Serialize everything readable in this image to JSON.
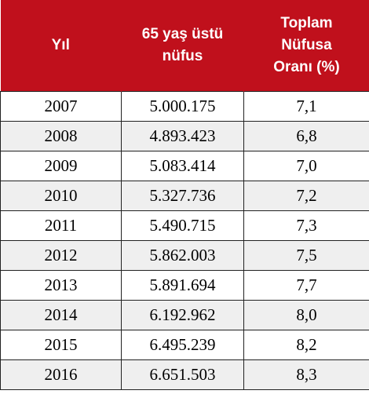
{
  "table": {
    "headers": {
      "year": [
        "Yıl"
      ],
      "population": [
        "65 yaş üstü",
        "nüfus"
      ],
      "ratio": [
        "Toplam",
        "Nüfusa",
        "Oranı (%)"
      ]
    },
    "rows": [
      {
        "year": "2007",
        "population": "5.000.175",
        "ratio": "7,1"
      },
      {
        "year": "2008",
        "population": "4.893.423",
        "ratio": "6,8"
      },
      {
        "year": "2009",
        "population": "5.083.414",
        "ratio": "7,0"
      },
      {
        "year": "2010",
        "population": "5.327.736",
        "ratio": "7,2"
      },
      {
        "year": "2011",
        "population": "5.490.715",
        "ratio": "7,3"
      },
      {
        "year": "2012",
        "population": "5.862.003",
        "ratio": "7,5"
      },
      {
        "year": "2013",
        "population": "5.891.694",
        "ratio": "7,7"
      },
      {
        "year": "2014",
        "population": "6.192.962",
        "ratio": "8,0"
      },
      {
        "year": "2015",
        "population": "6.495.239",
        "ratio": "8,2"
      },
      {
        "year": "2016",
        "population": "6.651.503",
        "ratio": "8,3"
      }
    ]
  },
  "colors": {
    "header_background": "#c0101c",
    "header_text": "#ffffff",
    "stripe_background": "#efefef"
  }
}
